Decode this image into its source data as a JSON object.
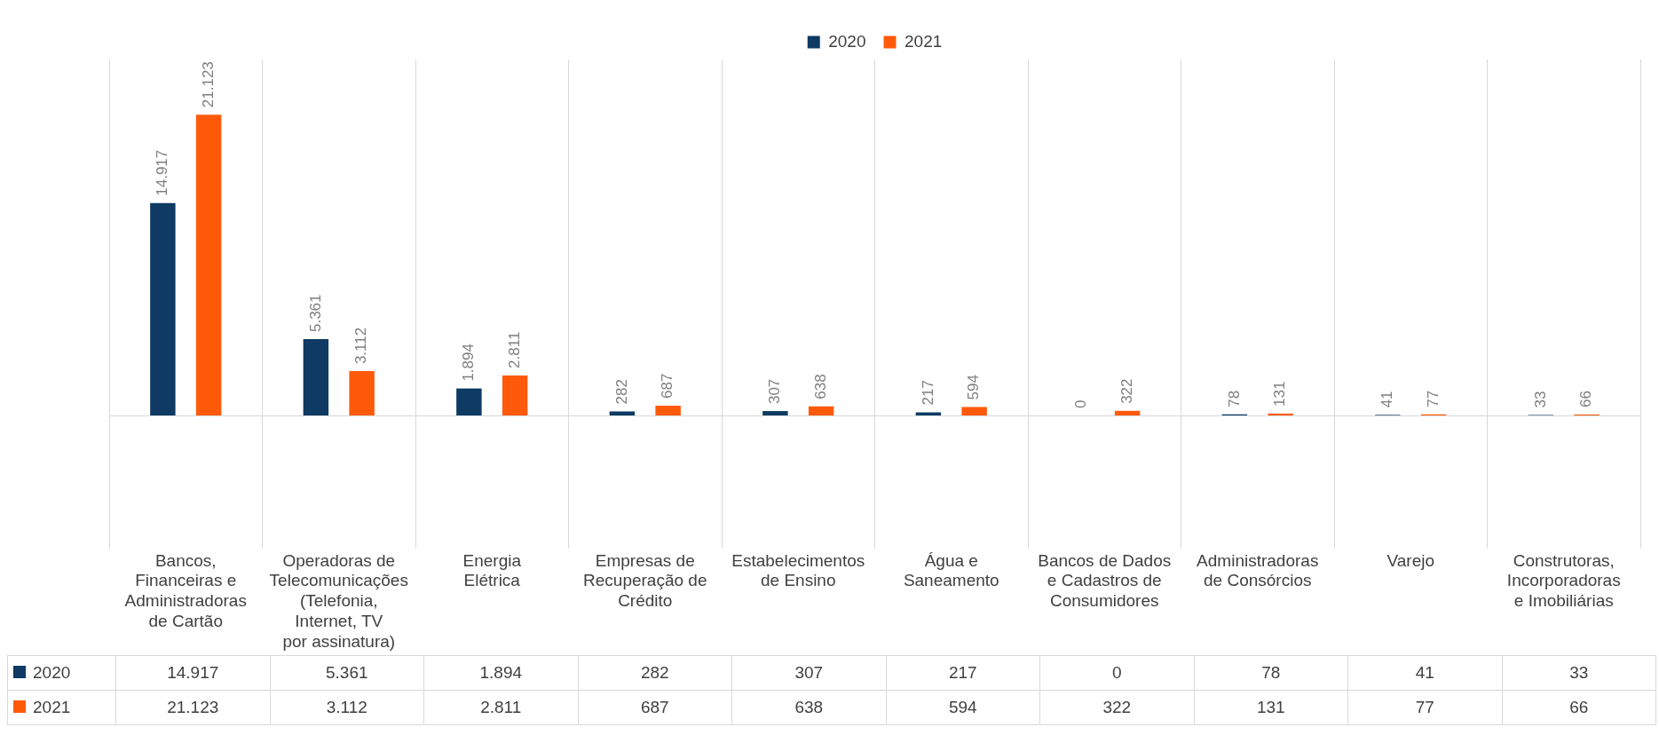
{
  "chart_data": {
    "type": "bar",
    "categories": [
      "Bancos, Financeiras e Administradoras de Cartão",
      "Operadoras de Telecomunicações (Telefonia, Internet, TV por assinatura)",
      "Energia Elétrica",
      "Empresas de Recuperação de Crédito",
      "Estabelecimentos de Ensino",
      "Água e Saneamento",
      "Bancos de Dados e Cadastros de Consumidores",
      "Administradoras de Consórcios",
      "Varejo",
      "Construtoras, Incorporadoras e Imobiliárias"
    ],
    "series": [
      {
        "name": "2020",
        "color": "#0e3a63",
        "values": [
          14917,
          5361,
          1894,
          282,
          307,
          217,
          0,
          78,
          41,
          33
        ],
        "value_labels": [
          "14.917",
          "5.361",
          "1.894",
          "282",
          "307",
          "217",
          "0",
          "78",
          "41",
          "33"
        ]
      },
      {
        "name": "2021",
        "color": "#ff5a0a",
        "values": [
          21123,
          3112,
          2811,
          687,
          638,
          594,
          322,
          131,
          77,
          66
        ],
        "value_labels": [
          "21.123",
          "3.112",
          "2.811",
          "687",
          "638",
          "594",
          "322",
          "131",
          "77",
          "66"
        ]
      }
    ],
    "legend": "top",
    "grid": "x"
  }
}
